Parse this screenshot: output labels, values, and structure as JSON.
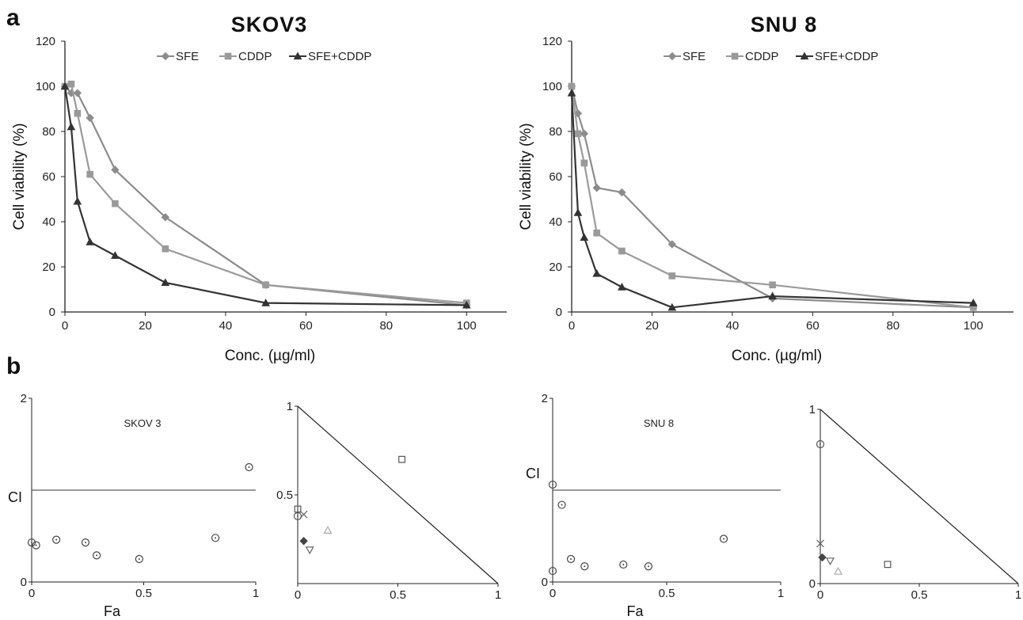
{
  "panel_a_letter": "a",
  "panel_b_letter": "b",
  "chart_data": [
    {
      "id": "a1",
      "type": "line",
      "title": "SKOV3",
      "xlabel": "Conc. (µg/ml)",
      "ylabel": "Cell viability (%)",
      "xlim": [
        0,
        110
      ],
      "ylim": [
        0,
        120
      ],
      "xticks": [
        0,
        20,
        40,
        60,
        80,
        100
      ],
      "yticks": [
        0,
        20,
        40,
        60,
        80,
        100,
        120
      ],
      "legend_position": "top",
      "series": [
        {
          "name": "SFE",
          "marker": "diamond",
          "color": "#8c8c8c",
          "x": [
            0,
            1.56,
            3.125,
            6.25,
            12.5,
            25,
            50,
            100
          ],
          "y": [
            100,
            97,
            97,
            86,
            63,
            42,
            12,
            3
          ]
        },
        {
          "name": "CDDP",
          "marker": "square",
          "color": "#9a9a9a",
          "x": [
            0,
            1.56,
            3.125,
            6.25,
            12.5,
            25,
            50,
            100
          ],
          "y": [
            100,
            101,
            88,
            61,
            48,
            28,
            12,
            4
          ]
        },
        {
          "name": "SFE+CDDP",
          "marker": "triangle",
          "color": "#333333",
          "x": [
            0,
            1.56,
            3.125,
            6.25,
            12.5,
            25,
            50,
            100
          ],
          "y": [
            100,
            82,
            49,
            31,
            25,
            13,
            4,
            3
          ]
        }
      ]
    },
    {
      "id": "a2",
      "type": "line",
      "title": "SNU 8",
      "xlabel": "Conc. (µg/ml)",
      "ylabel": "Cell viability (%)",
      "xlim": [
        0,
        110
      ],
      "ylim": [
        0,
        120
      ],
      "xticks": [
        0,
        20,
        40,
        60,
        80,
        100
      ],
      "yticks": [
        0,
        20,
        40,
        60,
        80,
        100,
        120
      ],
      "legend_position": "top",
      "series": [
        {
          "name": "SFE",
          "marker": "diamond",
          "color": "#8c8c8c",
          "x": [
            0,
            1.56,
            3.125,
            6.25,
            12.5,
            25,
            50,
            100
          ],
          "y": [
            100,
            88,
            79,
            55,
            53,
            30,
            6,
            2
          ]
        },
        {
          "name": "CDDP",
          "marker": "square",
          "color": "#9a9a9a",
          "x": [
            0,
            1.56,
            3.125,
            6.25,
            12.5,
            25,
            50,
            100
          ],
          "y": [
            100,
            79,
            66,
            35,
            27,
            16,
            12,
            2
          ]
        },
        {
          "name": "SFE+CDDP",
          "marker": "triangle",
          "color": "#333333",
          "x": [
            0,
            1.56,
            3.125,
            6.25,
            12.5,
            25,
            50,
            100
          ],
          "y": [
            97,
            44,
            33,
            17,
            11,
            2,
            7,
            4
          ]
        }
      ]
    },
    {
      "id": "b1",
      "type": "scatter",
      "title": "SKOV 3",
      "xlabel": "Fa",
      "ylabel": "CI",
      "xlim": [
        0,
        1
      ],
      "ylim": [
        0,
        2
      ],
      "xticks": [
        0,
        0.5,
        1
      ],
      "yticks": [
        0,
        2
      ],
      "reference_line_y": 1,
      "points": [
        {
          "x": 0.0,
          "y": 0.43
        },
        {
          "x": 0.02,
          "y": 0.4
        },
        {
          "x": 0.11,
          "y": 0.46
        },
        {
          "x": 0.24,
          "y": 0.43
        },
        {
          "x": 0.29,
          "y": 0.29
        },
        {
          "x": 0.48,
          "y": 0.25
        },
        {
          "x": 0.82,
          "y": 0.48
        },
        {
          "x": 0.97,
          "y": 1.25
        }
      ]
    },
    {
      "id": "b2",
      "type": "scatter",
      "title": "",
      "xlabel": "",
      "ylabel": "",
      "xlim": [
        0,
        1
      ],
      "ylim": [
        0,
        1
      ],
      "xticks": [
        0,
        0.5,
        1
      ],
      "yticks": [
        0.5,
        1
      ],
      "diagonal": true,
      "points": [
        {
          "x": 0.0,
          "y": 0.38,
          "marker": "circle"
        },
        {
          "x": 0.0,
          "y": 0.42,
          "marker": "square"
        },
        {
          "x": 0.03,
          "y": 0.39,
          "marker": "cross"
        },
        {
          "x": 0.03,
          "y": 0.24,
          "marker": "diamond"
        },
        {
          "x": 0.06,
          "y": 0.19,
          "marker": "triangle-down"
        },
        {
          "x": 0.15,
          "y": 0.3,
          "marker": "triangle"
        },
        {
          "x": 0.52,
          "y": 0.7,
          "marker": "square"
        }
      ]
    },
    {
      "id": "b3",
      "type": "scatter",
      "title": "SNU 8",
      "xlabel": "Fa",
      "ylabel": "CI",
      "xlim": [
        0,
        1
      ],
      "ylim": [
        0,
        2
      ],
      "xticks": [
        0,
        0.5,
        1
      ],
      "yticks": [
        0,
        2
      ],
      "reference_line_y": 1,
      "points": [
        {
          "x": 0.0,
          "y": 0.12
        },
        {
          "x": 0.0,
          "y": 1.06
        },
        {
          "x": 0.04,
          "y": 0.84
        },
        {
          "x": 0.08,
          "y": 0.25
        },
        {
          "x": 0.14,
          "y": 0.17
        },
        {
          "x": 0.31,
          "y": 0.19
        },
        {
          "x": 0.42,
          "y": 0.17
        },
        {
          "x": 0.75,
          "y": 0.47
        }
      ]
    },
    {
      "id": "b4",
      "type": "scatter",
      "title": "",
      "xlabel": "",
      "ylabel": "",
      "xlim": [
        0,
        1
      ],
      "ylim": [
        0,
        1
      ],
      "xticks": [
        0,
        0.5,
        1
      ],
      "yticks": [
        0,
        1
      ],
      "diagonal": true,
      "points": [
        {
          "x": 0.0,
          "y": 0.8,
          "marker": "circle"
        },
        {
          "x": 0.0,
          "y": 0.23,
          "marker": "cross"
        },
        {
          "x": 0.01,
          "y": 0.15,
          "marker": "diamond"
        },
        {
          "x": 0.05,
          "y": 0.13,
          "marker": "triangle-down"
        },
        {
          "x": 0.09,
          "y": 0.07,
          "marker": "triangle"
        },
        {
          "x": 0.34,
          "y": 0.11,
          "marker": "square"
        }
      ]
    }
  ]
}
